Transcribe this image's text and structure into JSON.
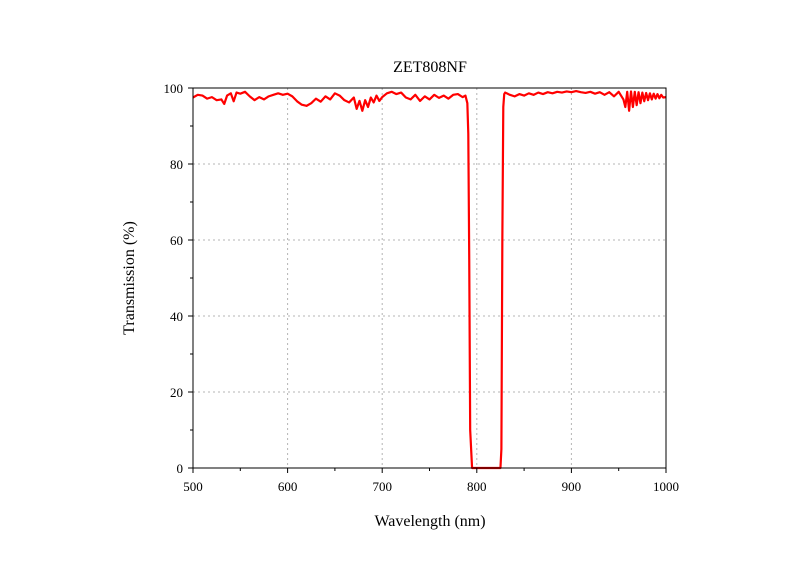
{
  "chart_data": {
    "type": "line",
    "title": "ZET808NF",
    "xlabel": "Wavelength (nm)",
    "ylabel": "Transmission (%)",
    "xlim": [
      500,
      1000
    ],
    "ylim": [
      0,
      100
    ],
    "xticks": [
      500,
      600,
      700,
      800,
      900,
      1000
    ],
    "yticks": [
      0,
      20,
      40,
      60,
      80,
      100
    ],
    "x_tick_labels": [
      "500",
      "600",
      "700",
      "800",
      "900",
      "1000"
    ],
    "y_tick_labels": [
      "0",
      "20",
      "40",
      "60",
      "80",
      "100"
    ],
    "grid": true,
    "legend": "none",
    "series": [
      {
        "color": "#ff0000",
        "x": [
          500,
          505,
          510,
          515,
          520,
          525,
          530,
          533,
          536,
          540,
          543,
          546,
          550,
          555,
          560,
          565,
          570,
          575,
          580,
          585,
          590,
          595,
          600,
          605,
          610,
          615,
          620,
          625,
          630,
          635,
          640,
          645,
          650,
          655,
          660,
          665,
          670,
          673,
          676,
          679,
          682,
          685,
          688,
          691,
          694,
          697,
          700,
          705,
          710,
          715,
          720,
          725,
          730,
          735,
          740,
          745,
          750,
          755,
          760,
          765,
          770,
          775,
          780,
          785,
          788,
          790,
          791,
          792,
          793,
          795,
          800,
          805,
          810,
          815,
          820,
          825,
          826,
          827,
          828,
          829,
          830,
          835,
          840,
          845,
          850,
          855,
          860,
          865,
          870,
          875,
          880,
          885,
          890,
          895,
          900,
          905,
          910,
          915,
          920,
          925,
          930,
          935,
          940,
          945,
          950,
          955,
          957,
          959,
          961,
          963,
          965,
          967,
          969,
          971,
          973,
          975,
          977,
          979,
          981,
          983,
          985,
          987,
          989,
          991,
          993,
          995,
          997,
          1000
        ],
        "y": [
          97.5,
          98.2,
          98.0,
          97.2,
          97.6,
          96.8,
          97.0,
          95.8,
          98.0,
          98.6,
          96.5,
          98.8,
          98.5,
          99.0,
          97.8,
          96.8,
          97.6,
          97.0,
          97.8,
          98.2,
          98.6,
          98.2,
          98.5,
          97.8,
          96.5,
          95.6,
          95.3,
          96.0,
          97.2,
          96.4,
          97.8,
          97.0,
          98.6,
          98.0,
          96.8,
          96.2,
          97.5,
          94.5,
          96.6,
          94.0,
          96.8,
          95.0,
          97.5,
          96.2,
          98.0,
          96.6,
          97.6,
          98.6,
          99.0,
          98.4,
          98.8,
          97.5,
          97.0,
          98.2,
          96.6,
          97.8,
          97.0,
          98.2,
          97.4,
          98.0,
          97.2,
          98.2,
          98.4,
          97.6,
          98.0,
          96.0,
          88.0,
          55.0,
          10.0,
          0.0,
          0.0,
          0.0,
          0.0,
          0.0,
          0.0,
          0.0,
          5.0,
          60.0,
          95.0,
          98.4,
          98.8,
          98.2,
          97.8,
          98.4,
          98.0,
          98.6,
          98.2,
          98.8,
          98.4,
          98.9,
          98.6,
          99.0,
          98.8,
          99.1,
          98.9,
          99.2,
          98.9,
          98.7,
          99.0,
          98.5,
          98.9,
          98.2,
          98.9,
          97.8,
          99.0,
          97.0,
          95.0,
          99.0,
          94.0,
          99.1,
          95.0,
          99.0,
          95.5,
          98.9,
          96.0,
          98.8,
          96.5,
          98.7,
          96.8,
          98.6,
          97.0,
          98.5,
          97.2,
          98.4,
          97.3,
          98.2,
          97.5,
          97.6
        ]
      }
    ]
  }
}
